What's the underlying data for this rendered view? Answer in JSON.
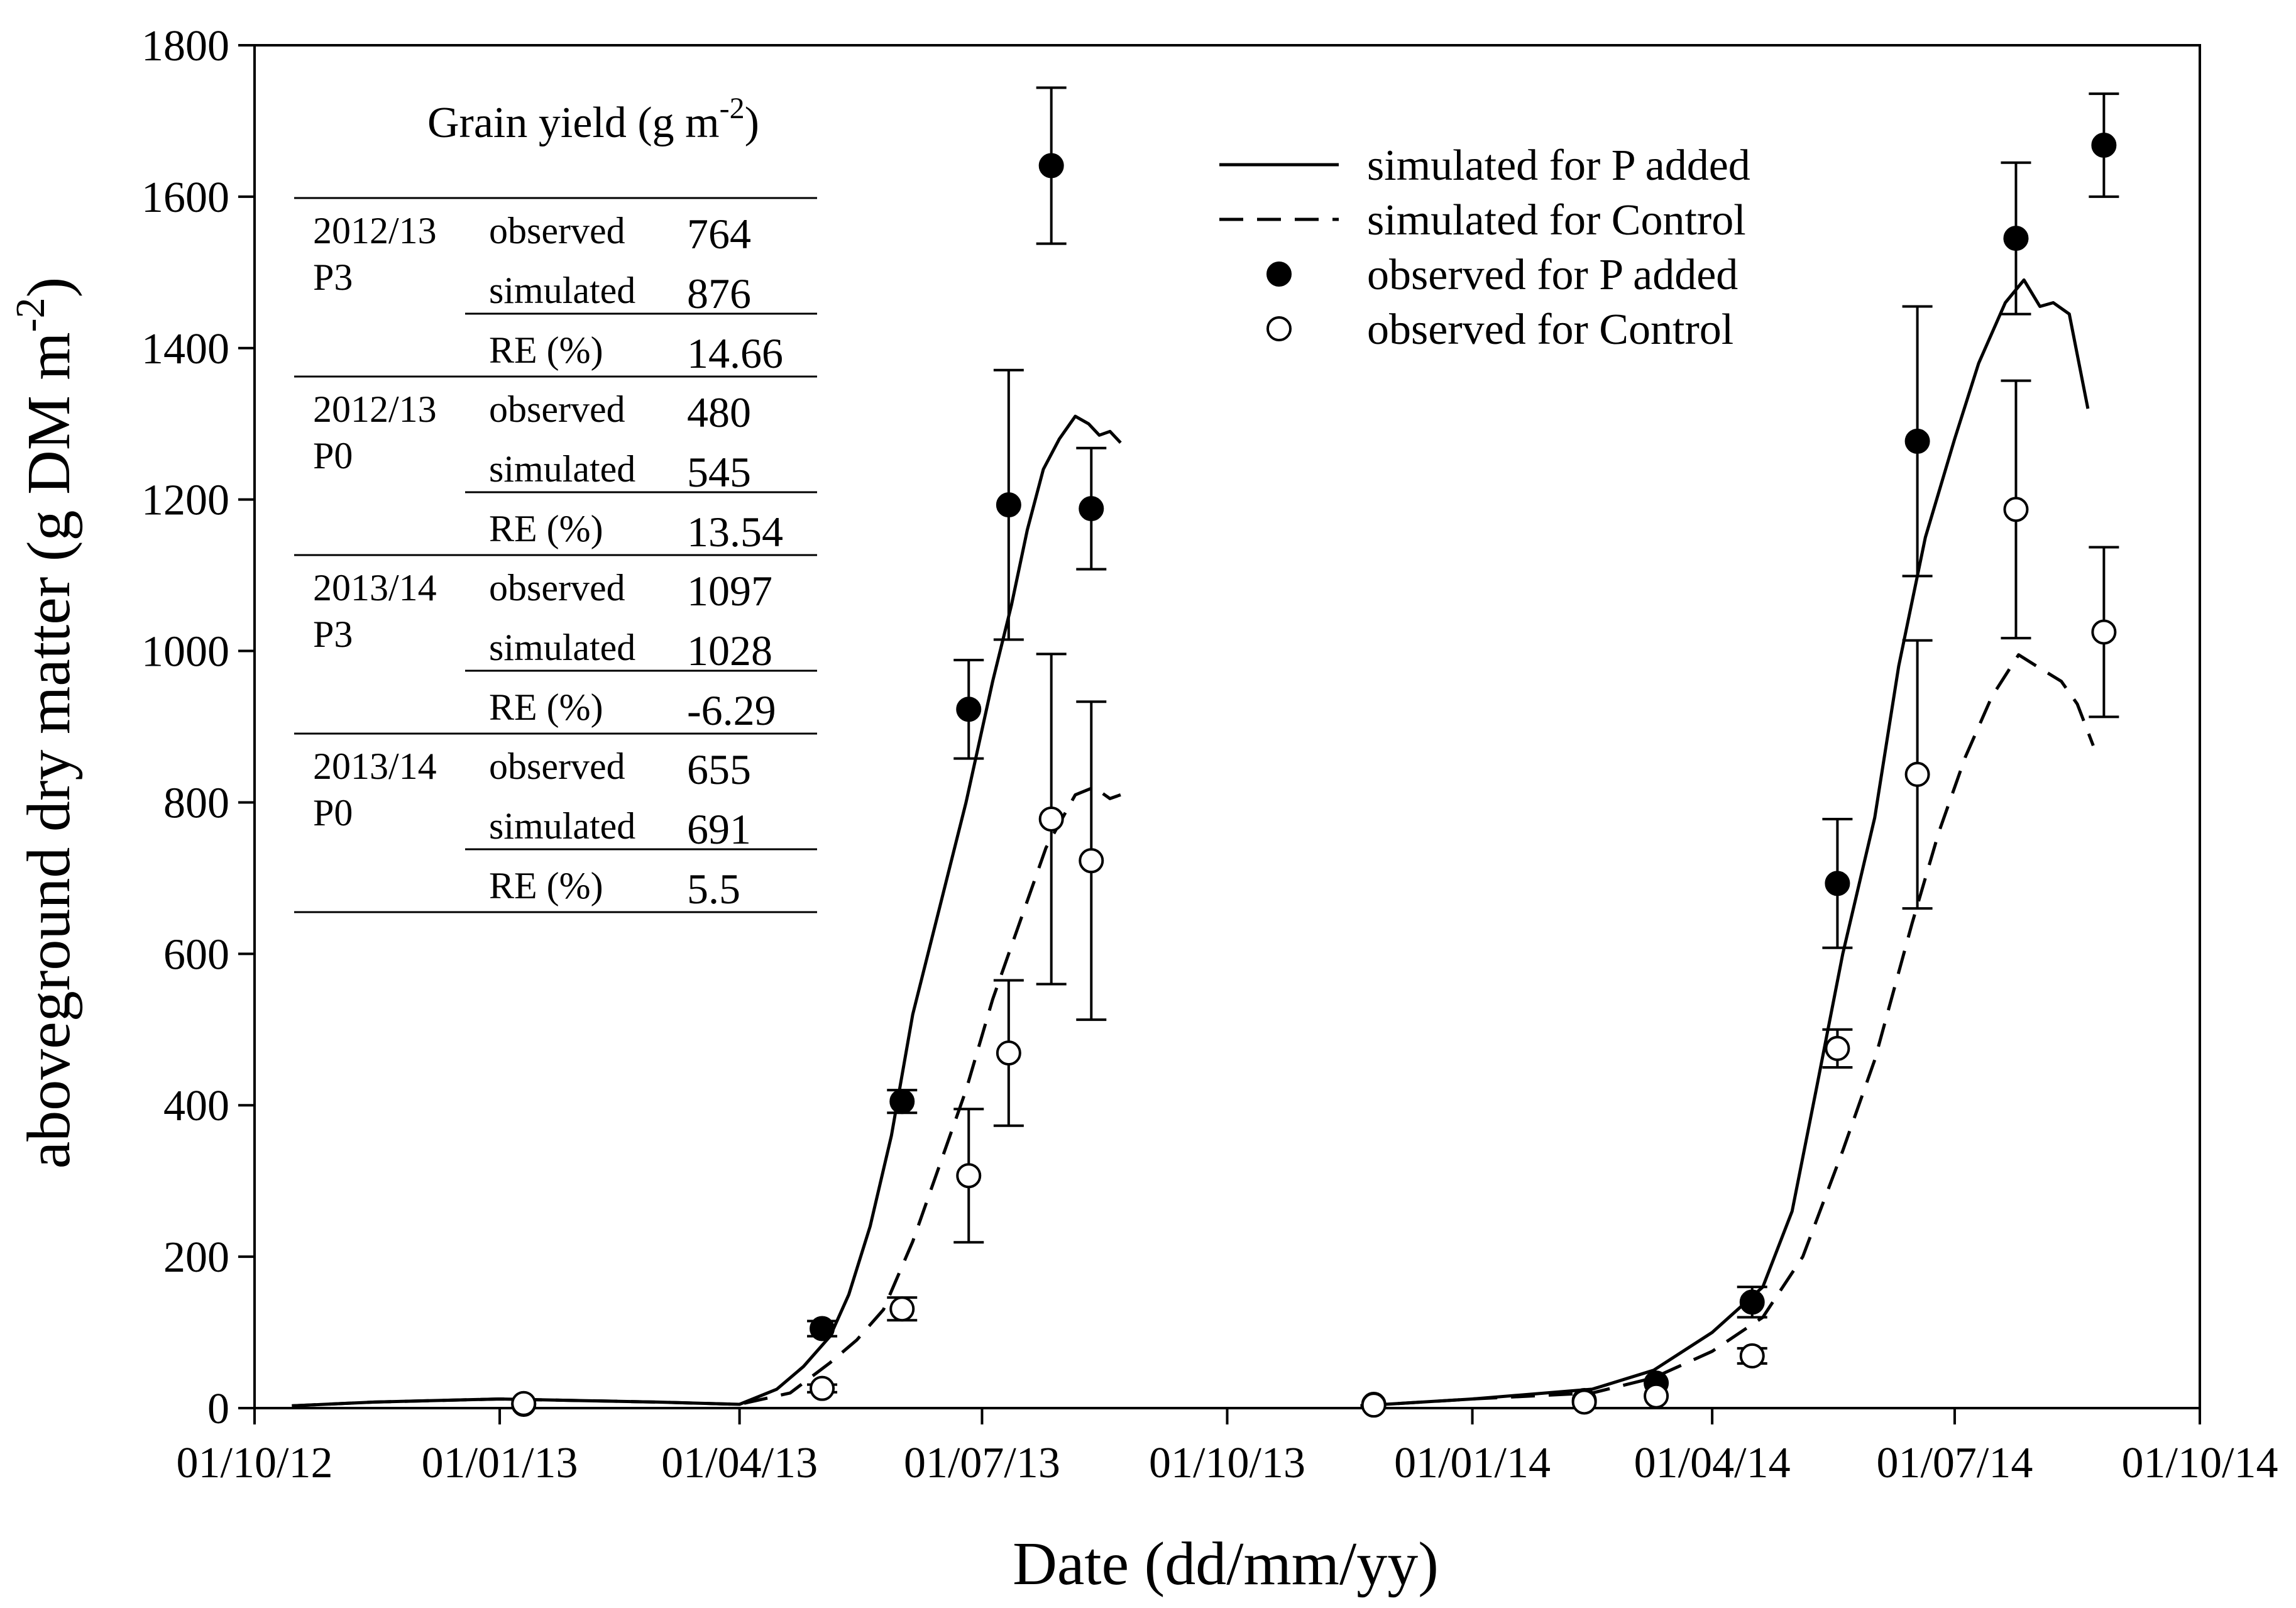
{
  "chart_data": {
    "type": "scatter",
    "xlabel": "Date (dd/mm/yy)",
    "ylabel_base": "aboveground dry matter (g DM m",
    "ylabel_sup": "-2",
    "ylabel_close": ")",
    "xlim": [
      "2012-10-01",
      "2014-10-01"
    ],
    "ylim": [
      0,
      1800
    ],
    "x_ticks": [
      "2012-10-01",
      "2013-01-01",
      "2013-04-01",
      "2013-07-01",
      "2013-10-01",
      "2014-01-01",
      "2014-04-01",
      "2014-07-01",
      "2014-10-01"
    ],
    "x_tick_labels": [
      "01/10/12",
      "01/01/13",
      "01/04/13",
      "01/07/13",
      "01/10/13",
      "01/01/14",
      "01/04/14",
      "01/07/14",
      "01/10/14"
    ],
    "y_ticks": [
      0,
      200,
      400,
      600,
      800,
      1000,
      1200,
      1400,
      1600,
      1800
    ],
    "legend": {
      "position": "top-right",
      "entries": [
        {
          "label": "simulated for P added",
          "style": "solid-line"
        },
        {
          "label": "simulated for Control",
          "style": "dashed-line"
        },
        {
          "label": "observed for P added",
          "style": "filled-circle"
        },
        {
          "label": "observed for Control",
          "style": "open-circle"
        }
      ]
    },
    "series": [
      {
        "name": "simulated for P added",
        "kind": "line",
        "style": "solid",
        "segments": [
          [
            {
              "x": "2012-10-15",
              "y": 3
            },
            {
              "x": "2012-11-15",
              "y": 8
            },
            {
              "x": "2013-01-01",
              "y": 12
            },
            {
              "x": "2013-03-01",
              "y": 8
            },
            {
              "x": "2013-04-01",
              "y": 5
            },
            {
              "x": "2013-04-15",
              "y": 25
            },
            {
              "x": "2013-04-25",
              "y": 55
            },
            {
              "x": "2013-05-05",
              "y": 95
            },
            {
              "x": "2013-05-12",
              "y": 150
            },
            {
              "x": "2013-05-20",
              "y": 240
            },
            {
              "x": "2013-05-28",
              "y": 360
            },
            {
              "x": "2013-06-05",
              "y": 520
            },
            {
              "x": "2013-06-15",
              "y": 660
            },
            {
              "x": "2013-06-25",
              "y": 800
            },
            {
              "x": "2013-07-05",
              "y": 960
            },
            {
              "x": "2013-07-12",
              "y": 1060
            },
            {
              "x": "2013-07-18",
              "y": 1160
            },
            {
              "x": "2013-07-24",
              "y": 1240
            },
            {
              "x": "2013-07-30",
              "y": 1280
            },
            {
              "x": "2013-08-05",
              "y": 1310
            },
            {
              "x": "2013-08-10",
              "y": 1300
            },
            {
              "x": "2013-08-14",
              "y": 1285
            },
            {
              "x": "2013-08-18",
              "y": 1290
            },
            {
              "x": "2013-08-22",
              "y": 1275
            }
          ],
          [
            {
              "x": "2013-11-20",
              "y": 3
            },
            {
              "x": "2014-01-01",
              "y": 12
            },
            {
              "x": "2014-02-15",
              "y": 25
            },
            {
              "x": "2014-03-10",
              "y": 50
            },
            {
              "x": "2014-04-01",
              "y": 100
            },
            {
              "x": "2014-04-20",
              "y": 160
            },
            {
              "x": "2014-05-01",
              "y": 260
            },
            {
              "x": "2014-05-10",
              "y": 420
            },
            {
              "x": "2014-05-20",
              "y": 600
            },
            {
              "x": "2014-06-01",
              "y": 780
            },
            {
              "x": "2014-06-10",
              "y": 980
            },
            {
              "x": "2014-06-20",
              "y": 1150
            },
            {
              "x": "2014-07-01",
              "y": 1280
            },
            {
              "x": "2014-07-10",
              "y": 1380
            },
            {
              "x": "2014-07-20",
              "y": 1460
            },
            {
              "x": "2014-07-27",
              "y": 1490
            },
            {
              "x": "2014-08-02",
              "y": 1455
            },
            {
              "x": "2014-08-07",
              "y": 1460
            },
            {
              "x": "2014-08-13",
              "y": 1445
            },
            {
              "x": "2014-08-20",
              "y": 1320
            }
          ]
        ]
      },
      {
        "name": "simulated for Control",
        "kind": "line",
        "style": "dashed",
        "segments": [
          [
            {
              "x": "2012-10-15",
              "y": 3
            },
            {
              "x": "2012-11-15",
              "y": 8
            },
            {
              "x": "2013-01-01",
              "y": 12
            },
            {
              "x": "2013-03-01",
              "y": 8
            },
            {
              "x": "2013-04-01",
              "y": 5
            },
            {
              "x": "2013-04-20",
              "y": 20
            },
            {
              "x": "2013-05-05",
              "y": 60
            },
            {
              "x": "2013-05-15",
              "y": 90
            },
            {
              "x": "2013-05-25",
              "y": 130
            },
            {
              "x": "2013-06-05",
              "y": 220
            },
            {
              "x": "2013-06-15",
              "y": 320
            },
            {
              "x": "2013-06-25",
              "y": 420
            },
            {
              "x": "2013-07-05",
              "y": 540
            },
            {
              "x": "2013-07-15",
              "y": 640
            },
            {
              "x": "2013-07-25",
              "y": 740
            },
            {
              "x": "2013-08-05",
              "y": 810
            },
            {
              "x": "2013-08-12",
              "y": 820
            },
            {
              "x": "2013-08-18",
              "y": 805
            },
            {
              "x": "2013-08-22",
              "y": 810
            }
          ],
          [
            {
              "x": "2013-11-20",
              "y": 3
            },
            {
              "x": "2014-01-01",
              "y": 12
            },
            {
              "x": "2014-02-15",
              "y": 20
            },
            {
              "x": "2014-03-10",
              "y": 40
            },
            {
              "x": "2014-04-01",
              "y": 75
            },
            {
              "x": "2014-04-20",
              "y": 120
            },
            {
              "x": "2014-05-05",
              "y": 200
            },
            {
              "x": "2014-05-20",
              "y": 340
            },
            {
              "x": "2014-06-01",
              "y": 460
            },
            {
              "x": "2014-06-15",
              "y": 640
            },
            {
              "x": "2014-06-25",
              "y": 760
            },
            {
              "x": "2014-07-05",
              "y": 860
            },
            {
              "x": "2014-07-15",
              "y": 940
            },
            {
              "x": "2014-07-25",
              "y": 995
            },
            {
              "x": "2014-08-03",
              "y": 975
            },
            {
              "x": "2014-08-10",
              "y": 960
            },
            {
              "x": "2014-08-16",
              "y": 930
            },
            {
              "x": "2014-08-22",
              "y": 875
            }
          ]
        ]
      },
      {
        "name": "observed for P added",
        "kind": "points",
        "marker": "filled-circle",
        "points": [
          {
            "x": "2013-01-10",
            "y": 5
          },
          {
            "x": "2013-05-02",
            "y": 105,
            "err": 10
          },
          {
            "x": "2013-06-01",
            "y": 405,
            "err": 15
          },
          {
            "x": "2013-06-26",
            "y": 923,
            "err": 65
          },
          {
            "x": "2013-07-11",
            "y": 1193,
            "err": 178
          },
          {
            "x": "2013-07-27",
            "y": 1641,
            "err": 103
          },
          {
            "x": "2013-08-11",
            "y": 1188,
            "err": 80
          },
          {
            "x": "2013-11-25",
            "y": 5
          },
          {
            "x": "2014-02-12",
            "y": 10
          },
          {
            "x": "2014-03-11",
            "y": 33
          },
          {
            "x": "2014-04-16",
            "y": 140,
            "err": 20
          },
          {
            "x": "2014-05-18",
            "y": 693,
            "err": 85
          },
          {
            "x": "2014-06-17",
            "y": 1277,
            "err": 178
          },
          {
            "x": "2014-07-24",
            "y": 1545,
            "err": 100
          },
          {
            "x": "2014-08-26",
            "y": 1668,
            "err": 68
          }
        ]
      },
      {
        "name": "observed for Control",
        "kind": "points",
        "marker": "open-circle",
        "points": [
          {
            "x": "2013-01-10",
            "y": 6
          },
          {
            "x": "2013-05-02",
            "y": 26,
            "err": 5
          },
          {
            "x": "2013-06-01",
            "y": 131,
            "err": 15
          },
          {
            "x": "2013-06-26",
            "y": 307,
            "err": 88
          },
          {
            "x": "2013-07-11",
            "y": 469,
            "err": 96
          },
          {
            "x": "2013-07-27",
            "y": 778,
            "err": 218
          },
          {
            "x": "2013-08-11",
            "y": 723,
            "err": 210
          },
          {
            "x": "2013-11-25",
            "y": 4
          },
          {
            "x": "2014-02-12",
            "y": 8
          },
          {
            "x": "2014-03-11",
            "y": 16
          },
          {
            "x": "2014-04-16",
            "y": 69,
            "err": 10
          },
          {
            "x": "2014-05-18",
            "y": 475,
            "err": 25
          },
          {
            "x": "2014-06-17",
            "y": 837,
            "err": 177
          },
          {
            "x": "2014-07-24",
            "y": 1187,
            "err": 170
          },
          {
            "x": "2014-08-26",
            "y": 1025,
            "err": 112
          }
        ]
      }
    ],
    "inset_table": {
      "title_base": "Grain yield (g m",
      "title_sup": "-2",
      "title_close": ")",
      "groups": [
        {
          "season": "2012/13",
          "treatment": "P3",
          "rows": [
            {
              "label": "observed",
              "value": "764"
            },
            {
              "label": "simulated",
              "value": "876"
            },
            {
              "label": "RE (%)",
              "value": "14.66"
            }
          ]
        },
        {
          "season": "2012/13",
          "treatment": "P0",
          "rows": [
            {
              "label": "observed",
              "value": "480"
            },
            {
              "label": "simulated",
              "value": "545"
            },
            {
              "label": "RE (%)",
              "value": "13.54"
            }
          ]
        },
        {
          "season": "2013/14",
          "treatment": "P3",
          "rows": [
            {
              "label": "observed",
              "value": "1097"
            },
            {
              "label": "simulated",
              "value": "1028"
            },
            {
              "label": "RE (%)",
              "value": "-6.29"
            }
          ]
        },
        {
          "season": "2013/14",
          "treatment": "P0",
          "rows": [
            {
              "label": "observed",
              "value": "655"
            },
            {
              "label": "simulated",
              "value": "691"
            },
            {
              "label": "RE (%)",
              "value": "5.5"
            }
          ]
        }
      ]
    }
  }
}
